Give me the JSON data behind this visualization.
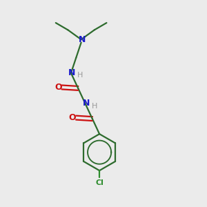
{
  "background_color": "#ebebeb",
  "bond_color": "#2d6b2d",
  "n_color": "#1a1acc",
  "o_color": "#cc1111",
  "cl_color": "#2d8c2d",
  "h_color": "#999999",
  "line_width": 1.6,
  "figsize": [
    3.0,
    3.0
  ],
  "dpi": 100,
  "xlim": [
    0,
    10
  ],
  "ylim": [
    0,
    10
  ]
}
